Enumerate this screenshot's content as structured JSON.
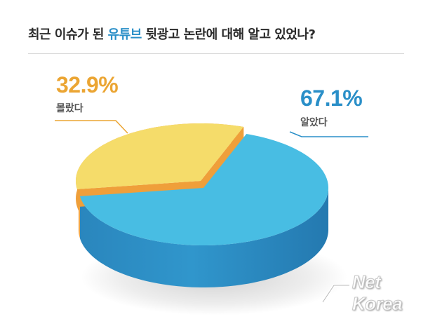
{
  "header": {
    "title_before": "최근 이슈가 된 ",
    "title_highlight": "유튜브",
    "title_after": " 뒷광고 논란에 대해 알고 있었나?"
  },
  "chart_data": {
    "type": "pie",
    "title": "최근 이슈가 된 유튜브 뒷광고 논란에 대해 알고 있었나?",
    "slices": [
      {
        "label": "알았다",
        "value": 67.1,
        "value_label": "67.1%",
        "color": "#48bde3",
        "side_color": "#2e8cc2",
        "label_color": "#2a8fc8"
      },
      {
        "label": "몰랐다",
        "value": 32.9,
        "value_label": "32.9%",
        "color": "#f5dc6a",
        "side_color": "#ef9f3a",
        "label_color": "#eba533"
      }
    ]
  },
  "logo": {
    "text": "Net Korea",
    "icon": "netkorea-logo-icon"
  }
}
